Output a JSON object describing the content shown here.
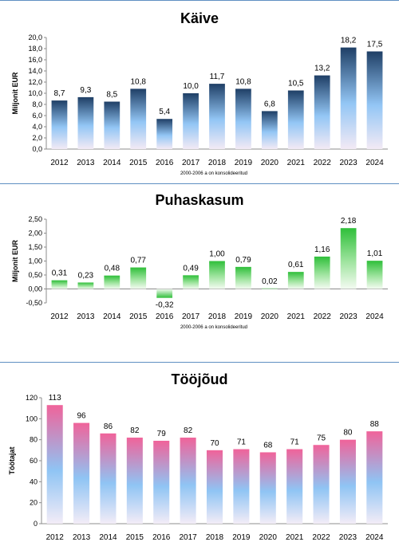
{
  "chart_data": [
    {
      "type": "bar",
      "title": "Käive",
      "ylabel": "Miljonit EUR",
      "note": "2000-2006 a on konsolideeritud",
      "ylim": [
        0,
        20
      ],
      "ytick_step": 2,
      "decimals": 1,
      "categories": [
        "2012",
        "2013",
        "2014",
        "2015",
        "2016",
        "2017",
        "2018",
        "2019",
        "2020",
        "2021",
        "2022",
        "2023",
        "2024"
      ],
      "values": [
        8.7,
        9.3,
        8.5,
        10.8,
        5.4,
        10.0,
        11.7,
        10.8,
        6.8,
        10.5,
        13.2,
        18.2,
        17.5
      ],
      "labels": [
        "8,7",
        "9,3",
        "8,5",
        "10,8",
        "5,4",
        "10,0",
        "11,7",
        "10,8",
        "6,8",
        "10,5",
        "13,2",
        "18,2",
        "17,5"
      ],
      "gradient": [
        "#1f3f66",
        "#93c6f5",
        "#f3eaf5"
      ]
    },
    {
      "type": "bar",
      "title": "Puhaskasum",
      "ylabel": "Miljonit EUR",
      "note": "2000-2006 a on konsolideeritud",
      "ylim": [
        -0.5,
        2.5
      ],
      "ytick_step": 0.5,
      "decimals": 2,
      "categories": [
        "2012",
        "2013",
        "2014",
        "2015",
        "2016",
        "2017",
        "2018",
        "2019",
        "2020",
        "2021",
        "2022",
        "2023",
        "2024"
      ],
      "values": [
        0.31,
        0.23,
        0.48,
        0.77,
        -0.32,
        0.49,
        1.0,
        0.79,
        0.02,
        0.61,
        1.16,
        2.18,
        1.01
      ],
      "labels": [
        "0,31",
        "0,23",
        "0,48",
        "0,77",
        "-0,32",
        "0,49",
        "1,00",
        "0,79",
        "0,02",
        "0,61",
        "1,16",
        "2,18",
        "1,01"
      ],
      "gradient": [
        "#2fbf3a",
        "#9fe49f",
        "#f4fbf2"
      ]
    },
    {
      "type": "bar",
      "title": "Tööjõud",
      "ylabel": "Töötajat",
      "note": "",
      "ylim": [
        0,
        120
      ],
      "ytick_step": 20,
      "decimals": 0,
      "categories": [
        "2012",
        "2013",
        "2014",
        "2015",
        "2016",
        "2017",
        "2018",
        "2019",
        "2020",
        "2021",
        "2022",
        "2023",
        "2024"
      ],
      "values": [
        113,
        96,
        86,
        82,
        79,
        82,
        70,
        71,
        68,
        71,
        75,
        80,
        88
      ],
      "labels": [
        "113",
        "96",
        "86",
        "82",
        "79",
        "82",
        "70",
        "71",
        "68",
        "71",
        "75",
        "80",
        "88"
      ],
      "gradient": [
        "#f0639a",
        "#8fc4f4",
        "#f3ecf7"
      ]
    }
  ]
}
